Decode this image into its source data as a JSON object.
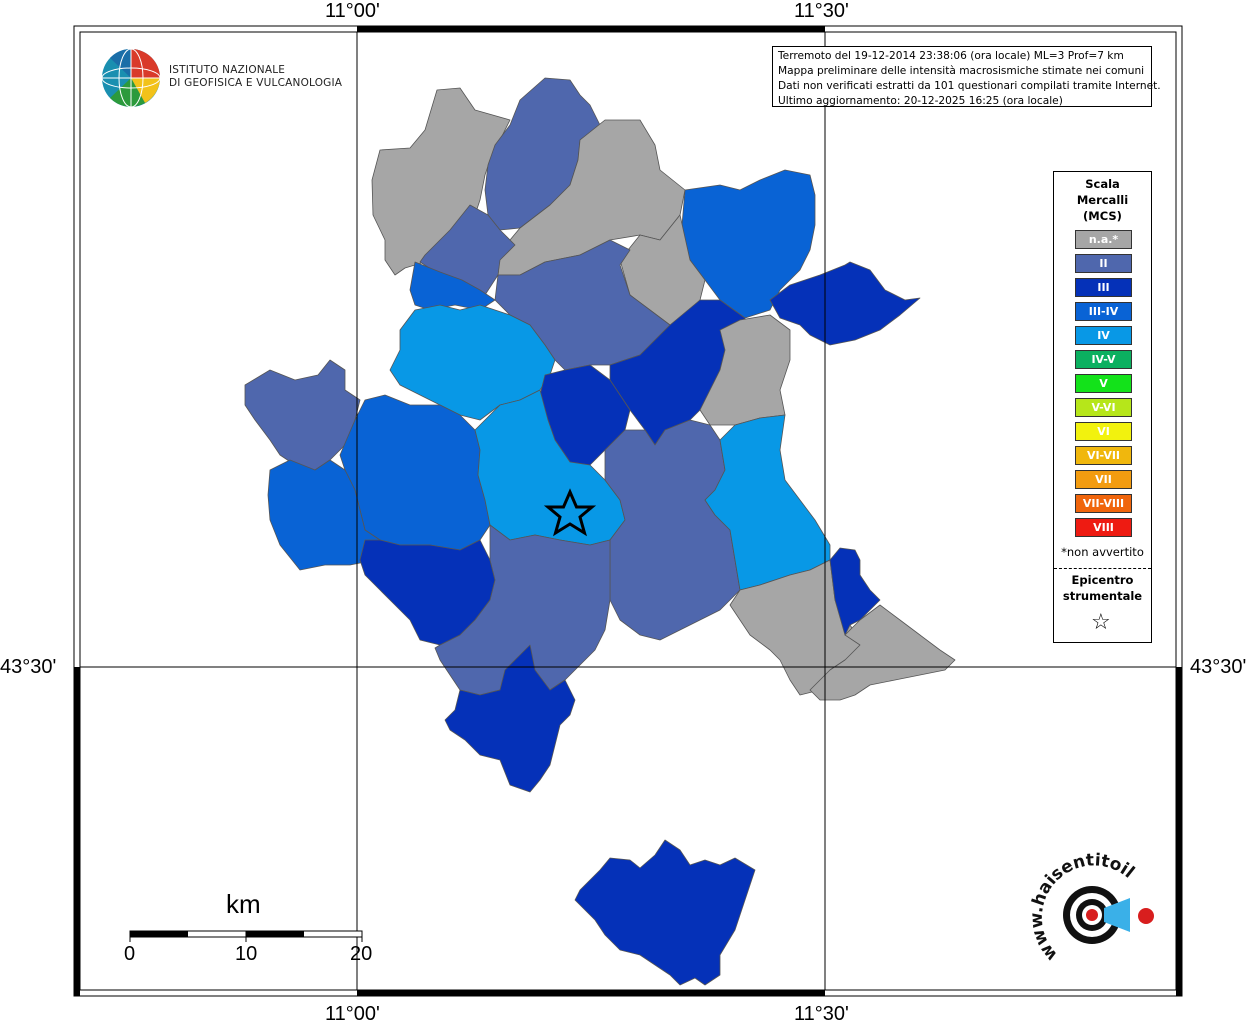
{
  "coords": {
    "lon_left": "11°00'",
    "lon_right": "11°30'",
    "lat": "43°30'"
  },
  "info": {
    "line1": "Terremoto del 19-12-2014 23:38:06 (ora locale) ML=3 Prof=7 km",
    "line2": "Mappa preliminare delle intensità macrosismiche stimate nei comuni",
    "line3": "Dati non verificati estratti da 101 questionari compilati tramite Internet.",
    "line4": "Ultimo aggiornamento: 20-12-2025 16:25 (ora locale)"
  },
  "logo": {
    "line1": "ISTITUTO NAZIONALE",
    "line2": "DI GEOFISICA E VULCANOLOGIA",
    "icon": "ingv-globe-icon"
  },
  "legend": {
    "title_line1": "Scala",
    "title_line2": "Mercalli",
    "title_line3": "(MCS)",
    "classes": [
      {
        "label": "n.a.*",
        "color": "#a6a6a6"
      },
      {
        "label": "II",
        "color": "#4f67ad"
      },
      {
        "label": "III",
        "color": "#0531b8"
      },
      {
        "label": "III-IV",
        "color": "#0963d5"
      },
      {
        "label": "IV",
        "color": "#0898e6"
      },
      {
        "label": "IV-V",
        "color": "#0bb060"
      },
      {
        "label": "V",
        "color": "#13e21a"
      },
      {
        "label": "V-VI",
        "color": "#b6e61a"
      },
      {
        "label": "VI",
        "color": "#f2f20e"
      },
      {
        "label": "VI-VII",
        "color": "#f0b70d"
      },
      {
        "label": "VII",
        "color": "#f39c10"
      },
      {
        "label": "VII-VIII",
        "color": "#f0650c"
      },
      {
        "label": "VIII",
        "color": "#ee1b12"
      }
    ],
    "note": "*non avvertito",
    "epicentre_line1": "Epicentro",
    "epicentre_line2": "strumentale",
    "epicentre_icon": "star-icon"
  },
  "scalebar": {
    "unit": "km",
    "ticks": [
      "0",
      "10",
      "20"
    ]
  },
  "badge": {
    "text": "www.haisentitoilterremoto.it",
    "icon": "hai-sentito-il-terremoto-logo-icon"
  }
}
